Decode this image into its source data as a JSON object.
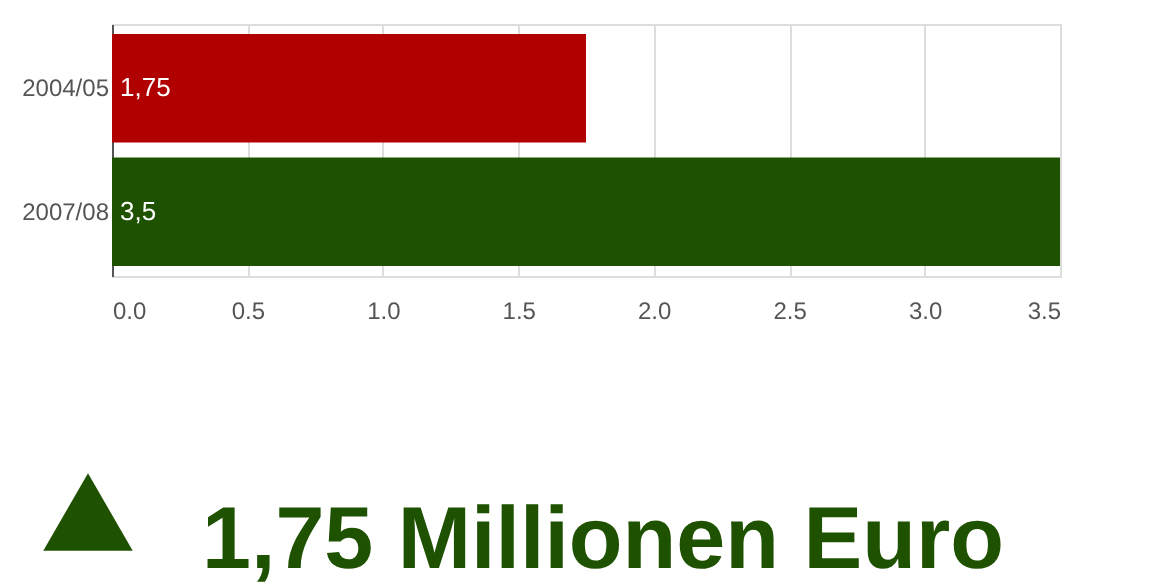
{
  "chart_data": {
    "type": "bar",
    "orientation": "horizontal",
    "categories": [
      "2004/05",
      "2007/08"
    ],
    "values": [
      1.75,
      3.5
    ],
    "colors": [
      "#b00000",
      "#1e5200"
    ],
    "value_labels": [
      "1,75",
      "3,5"
    ],
    "xlim": [
      0,
      3.5
    ],
    "xticks": [
      {
        "value": 0,
        "label": "0.0"
      },
      {
        "value": 0.5,
        "label": "0.5"
      },
      {
        "value": 1,
        "label": "1.0"
      },
      {
        "value": 1.5,
        "label": "1.5"
      },
      {
        "value": 2,
        "label": "2.0"
      },
      {
        "value": 2.5,
        "label": "2.5"
      },
      {
        "value": 3,
        "label": "3.0"
      },
      {
        "value": 3.5,
        "label": "3.5"
      }
    ],
    "grid": "x",
    "annotations": [
      "1,75 Millionen Euro"
    ]
  }
}
